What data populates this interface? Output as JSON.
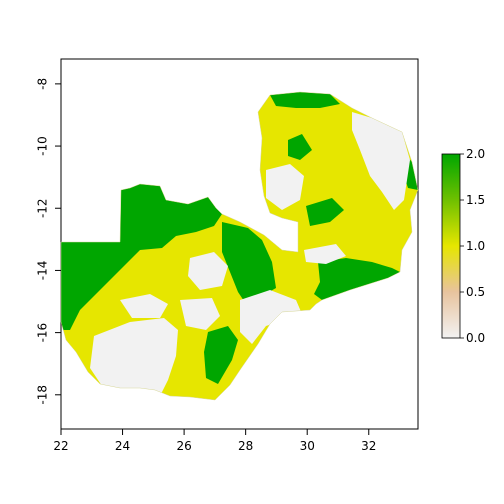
{
  "chart_data": {
    "type": "heatmap",
    "title": "",
    "xlabel": "",
    "ylabel": "",
    "xlim": [
      22,
      33.6
    ],
    "ylim": [
      -19.1,
      -7.2
    ],
    "x_ticks": [
      "22",
      "24",
      "26",
      "28",
      "30",
      "32"
    ],
    "y_ticks": [
      "-8",
      "-10",
      "-12",
      "-14",
      "-16",
      "-18"
    ],
    "legend": {
      "placement": "right",
      "min": 0.0,
      "max": 2.0,
      "ticks": [
        "0.0",
        "0.5",
        "1.0",
        "1.5",
        "2.0"
      ],
      "colors": [
        "#f2f2f2",
        "#e8c39e",
        "#e6e600",
        "#00a600"
      ]
    },
    "classes": [
      {
        "value": 0.0,
        "color": "#f2f2f2"
      },
      {
        "value": 1.0,
        "color": "#e6e600"
      },
      {
        "value": 2.0,
        "color": "#00a600"
      }
    ]
  }
}
